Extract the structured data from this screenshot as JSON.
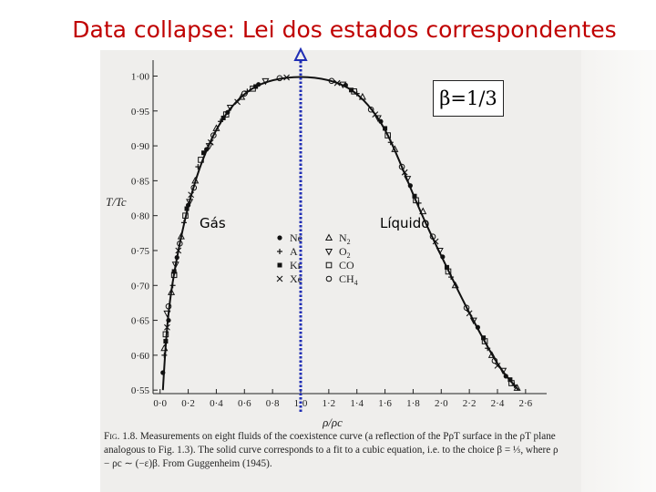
{
  "slide_title": "Data collapse: Lei dos estados correspondentes",
  "beta_label": "β=1/3",
  "phase_labels": {
    "gas": "Gás",
    "liquid": "Líquido"
  },
  "chart_data": {
    "type": "scatter",
    "xlabel": "ρ/ρc",
    "ylabel": "T/Tc",
    "xlim": [
      -0.05,
      2.75
    ],
    "ylim": [
      0.545,
      1.015
    ],
    "x_ticks": [
      "0·0",
      "0·2",
      "0·4",
      "0·6",
      "0·8",
      "1·0",
      "1·2",
      "1·4",
      "1·6",
      "1·8",
      "2·0",
      "2·2",
      "2·4",
      "2·6"
    ],
    "y_ticks": [
      "0·55",
      "0·60",
      "0·65",
      "0·70",
      "0·75",
      "0·80",
      "0·85",
      "0·90",
      "0·95",
      "1·00"
    ],
    "critical_line_x": 1.0,
    "fit_curve": {
      "description": "cubic fit, β = 1/3",
      "points": [
        [
          0.02,
          0.55
        ],
        [
          0.04,
          0.62
        ],
        [
          0.07,
          0.68
        ],
        [
          0.11,
          0.73
        ],
        [
          0.16,
          0.78
        ],
        [
          0.22,
          0.83
        ],
        [
          0.3,
          0.88
        ],
        [
          0.4,
          0.925
        ],
        [
          0.52,
          0.96
        ],
        [
          0.65,
          0.983
        ],
        [
          0.8,
          0.995
        ],
        [
          1.0,
          1.0
        ],
        [
          1.2,
          0.995
        ],
        [
          1.35,
          0.983
        ],
        [
          1.48,
          0.96
        ],
        [
          1.6,
          0.925
        ],
        [
          1.7,
          0.88
        ],
        [
          1.8,
          0.83
        ],
        [
          1.91,
          0.78
        ],
        [
          2.03,
          0.73
        ],
        [
          2.15,
          0.68
        ],
        [
          2.28,
          0.63
        ],
        [
          2.42,
          0.58
        ],
        [
          2.55,
          0.55
        ]
      ]
    },
    "series": [
      {
        "name": "Ne",
        "marker": "dot",
        "points": [
          [
            0.02,
            0.575
          ],
          [
            0.06,
            0.65
          ],
          [
            0.12,
            0.74
          ],
          [
            0.2,
            0.815
          ],
          [
            0.33,
            0.895
          ],
          [
            0.48,
            0.948
          ],
          [
            0.7,
            0.988
          ],
          [
            1.32,
            0.987
          ],
          [
            1.57,
            0.935
          ],
          [
            1.78,
            0.843
          ],
          [
            2.01,
            0.741
          ],
          [
            2.26,
            0.64
          ],
          [
            2.46,
            0.57
          ]
        ]
      },
      {
        "name": "A",
        "marker": "plus",
        "points": [
          [
            0.03,
            0.6
          ],
          [
            0.09,
            0.7
          ],
          [
            0.17,
            0.79
          ],
          [
            0.27,
            0.87
          ],
          [
            0.43,
            0.935
          ],
          [
            0.62,
            0.978
          ],
          [
            1.4,
            0.975
          ],
          [
            1.64,
            0.905
          ],
          [
            1.84,
            0.818
          ],
          [
            2.07,
            0.712
          ],
          [
            2.33,
            0.61
          ],
          [
            2.52,
            0.557
          ]
        ]
      },
      {
        "name": "Kr",
        "marker": "square",
        "points": [
          [
            0.04,
            0.62
          ],
          [
            0.1,
            0.72
          ],
          [
            0.19,
            0.81
          ],
          [
            0.31,
            0.89
          ],
          [
            0.45,
            0.94
          ],
          [
            0.68,
            0.985
          ],
          [
            1.36,
            0.98
          ],
          [
            1.6,
            0.925
          ],
          [
            1.81,
            0.828
          ],
          [
            2.04,
            0.726
          ],
          [
            2.3,
            0.625
          ],
          [
            2.49,
            0.565
          ]
        ]
      },
      {
        "name": "Xe",
        "marker": "cross",
        "points": [
          [
            0.05,
            0.64
          ],
          [
            0.13,
            0.75
          ],
          [
            0.22,
            0.83
          ],
          [
            0.36,
            0.905
          ],
          [
            0.55,
            0.963
          ],
          [
            0.9,
            0.998
          ],
          [
            1.26,
            0.99
          ],
          [
            1.53,
            0.945
          ],
          [
            1.74,
            0.862
          ],
          [
            1.96,
            0.763
          ],
          [
            2.2,
            0.66
          ],
          [
            2.4,
            0.585
          ]
        ]
      },
      {
        "name": "N2",
        "marker": "triangle",
        "points": [
          [
            0.03,
            0.61
          ],
          [
            0.08,
            0.69
          ],
          [
            0.15,
            0.77
          ],
          [
            0.25,
            0.85
          ],
          [
            0.4,
            0.925
          ],
          [
            0.58,
            0.97
          ],
          [
            1.44,
            0.97
          ],
          [
            1.67,
            0.895
          ],
          [
            1.87,
            0.806
          ],
          [
            2.1,
            0.7
          ],
          [
            2.36,
            0.6
          ],
          [
            2.54,
            0.553
          ]
        ]
      },
      {
        "name": "O2",
        "marker": "triangle-down",
        "points": [
          [
            0.05,
            0.66
          ],
          [
            0.11,
            0.73
          ],
          [
            0.21,
            0.82
          ],
          [
            0.35,
            0.9
          ],
          [
            0.5,
            0.955
          ],
          [
            0.75,
            0.993
          ],
          [
            1.3,
            0.988
          ],
          [
            1.55,
            0.94
          ],
          [
            1.76,
            0.853
          ],
          [
            1.99,
            0.75
          ],
          [
            2.23,
            0.65
          ],
          [
            2.44,
            0.578
          ]
        ]
      },
      {
        "name": "CO",
        "marker": "open-square",
        "points": [
          [
            0.04,
            0.63
          ],
          [
            0.1,
            0.715
          ],
          [
            0.18,
            0.8
          ],
          [
            0.29,
            0.88
          ],
          [
            0.47,
            0.945
          ],
          [
            0.66,
            0.982
          ],
          [
            1.38,
            0.978
          ],
          [
            1.62,
            0.915
          ],
          [
            1.82,
            0.822
          ],
          [
            2.05,
            0.72
          ],
          [
            2.31,
            0.62
          ],
          [
            2.5,
            0.56
          ]
        ]
      },
      {
        "name": "CH4",
        "marker": "open-circle",
        "points": [
          [
            0.06,
            0.67
          ],
          [
            0.14,
            0.76
          ],
          [
            0.24,
            0.84
          ],
          [
            0.38,
            0.915
          ],
          [
            0.6,
            0.975
          ],
          [
            0.85,
            0.997
          ],
          [
            1.22,
            0.993
          ],
          [
            1.5,
            0.952
          ],
          [
            1.72,
            0.87
          ],
          [
            1.94,
            0.77
          ],
          [
            2.18,
            0.668
          ],
          [
            2.38,
            0.592
          ]
        ]
      }
    ],
    "legend": {
      "left": [
        "Ne",
        "A",
        "Kr",
        "Xe"
      ],
      "right": [
        "N2",
        "O2",
        "CO",
        "CH4"
      ]
    }
  },
  "caption": {
    "fig": "Fig. 1.8.",
    "text": "Measurements on eight fluids of the coexistence curve (a reflection of the PρT surface in the ρT plane analogous to Fig. 1.3). The solid curve corresponds to a fit to a cubic equation, i.e. to the choice β = ⅓, where ρ − ρc ∼ (−ε)β. From Guggenheim (1945)."
  },
  "colors": {
    "title": "#c00000",
    "critical_line": "#1f2db4",
    "ink": "#222222"
  }
}
